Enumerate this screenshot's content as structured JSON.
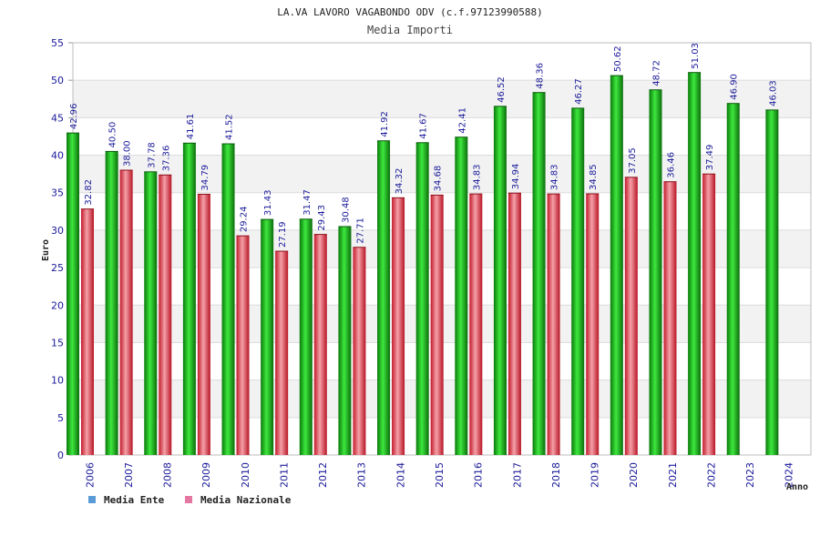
{
  "chart_data": {
    "type": "bar",
    "title": "LA.VA LAVORO VAGABONDO ODV (c.f.97123990588)",
    "subtitle": "Media Importi",
    "xlabel": "Anno",
    "ylabel": "Euro",
    "ylim": [
      0,
      55
    ],
    "yticks": [
      0,
      5,
      10,
      15,
      20,
      25,
      30,
      35,
      40,
      45,
      50,
      55
    ],
    "grid": true,
    "legend": "bottom-left",
    "categories": [
      "2006",
      "2007",
      "2008",
      "2009",
      "2010",
      "2011",
      "2012",
      "2013",
      "2014",
      "2015",
      "2016",
      "2017",
      "2018",
      "2019",
      "2020",
      "2021",
      "2022",
      "2023",
      "2024"
    ],
    "series": [
      {
        "name": "Media Ente",
        "color": "#1aa81a",
        "legend_color": "#5b9bd5",
        "values": [
          42.96,
          40.5,
          37.78,
          41.61,
          41.52,
          31.43,
          31.47,
          30.48,
          41.92,
          41.67,
          42.41,
          46.52,
          48.36,
          46.27,
          50.62,
          48.72,
          51.03,
          46.9,
          46.03
        ],
        "labels": [
          "42.96",
          "40.50",
          "37.78",
          "41.61",
          "41.52",
          "31.43",
          "31.47",
          "30.48",
          "41.92",
          "41.67",
          "42.41",
          "46.52",
          "48.36",
          "46.27",
          "50.62",
          "48.72",
          "51.03",
          "46.90",
          "46.03"
        ]
      },
      {
        "name": "Media Nazionale",
        "color": "#e03040",
        "legend_color": "#e377a0",
        "values": [
          32.82,
          38.0,
          37.36,
          34.79,
          29.24,
          27.19,
          29.43,
          27.71,
          34.32,
          34.68,
          34.83,
          34.94,
          34.83,
          34.85,
          37.05,
          36.46,
          37.49,
          null,
          null
        ],
        "labels": [
          "32.82",
          "38.00",
          "37.36",
          "34.79",
          "29.24",
          "27.19",
          "29.43",
          "27.71",
          "34.32",
          "34.68",
          "34.83",
          "34.94",
          "34.83",
          "34.85",
          "37.05",
          "36.46",
          "37.49",
          null,
          null
        ]
      }
    ]
  }
}
